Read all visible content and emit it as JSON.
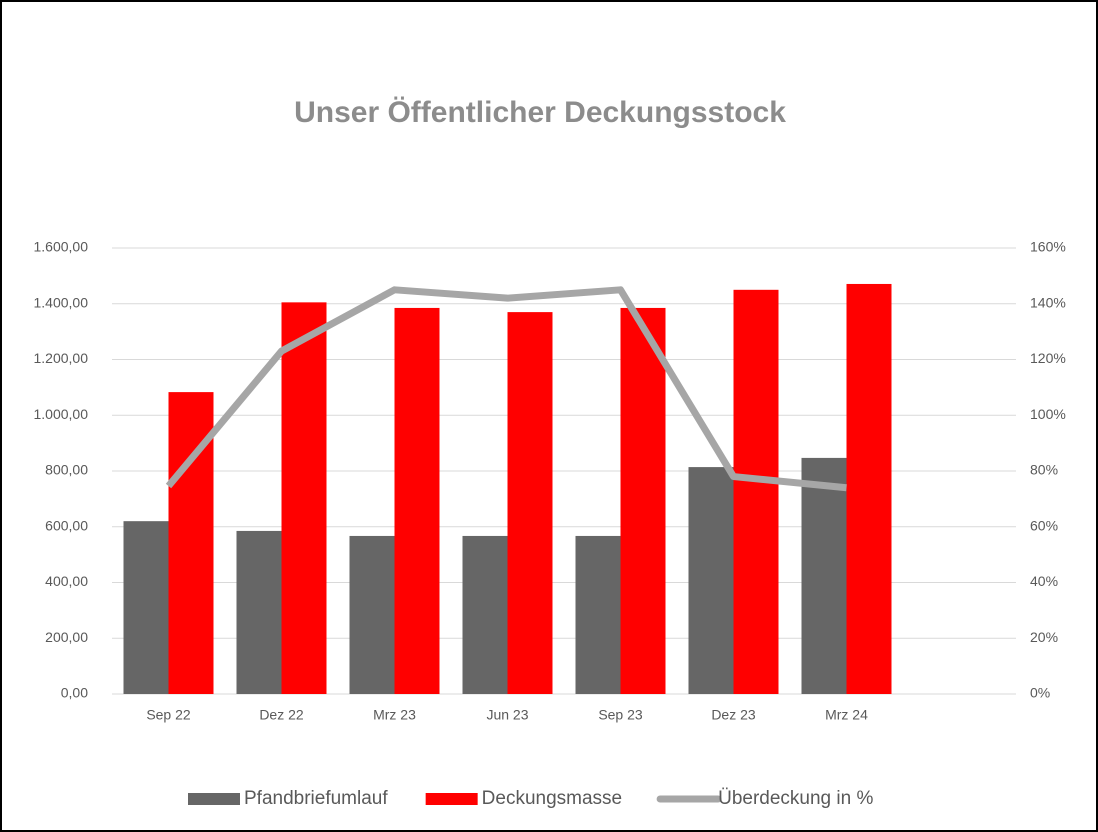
{
  "chart_data": {
    "type": "bar",
    "title": "Unser Öffentlicher Deckungsstock",
    "categories": [
      "Sep 22",
      "Dez 22",
      "Mrz 23",
      "Jun 23",
      "Sep 23",
      "Dez 23",
      "Mrz 24",
      null
    ],
    "series": [
      {
        "name": "Pfandbriefumlauf",
        "color": "#666666",
        "type": "bar",
        "values": [
          620,
          585,
          567,
          567,
          567,
          814,
          847,
          null
        ]
      },
      {
        "name": "Deckungsmasse",
        "color": "#ff0000",
        "type": "bar",
        "values": [
          1083,
          1405,
          1385,
          1370,
          1385,
          1450,
          1471,
          null
        ]
      },
      {
        "name": "Überdeckung in %",
        "color": "#a6a6a6",
        "type": "line",
        "axis": "y2",
        "values": [
          74.6,
          123,
          145,
          142,
          145,
          78,
          74,
          null
        ]
      }
    ],
    "ylim": [
      0,
      1600
    ],
    "yticks": [
      {
        "value": 0,
        "label": "0,00"
      },
      {
        "value": 200,
        "label": "200,00"
      },
      {
        "value": 400,
        "label": "400,00"
      },
      {
        "value": 600,
        "label": "600,00"
      },
      {
        "value": 800,
        "label": "800,00"
      },
      {
        "value": 1000,
        "label": "1.000,00"
      },
      {
        "value": 1200,
        "label": "1.200,00"
      },
      {
        "value": 1400,
        "label": "1.400,00"
      },
      {
        "value": 1600,
        "label": "1.600,00"
      }
    ],
    "y2lim": [
      0,
      160
    ],
    "y2ticks": [
      {
        "value": 0,
        "label": "0%"
      },
      {
        "value": 20,
        "label": "20%"
      },
      {
        "value": 40,
        "label": "40%"
      },
      {
        "value": 60,
        "label": "60%"
      },
      {
        "value": 80,
        "label": "80%"
      },
      {
        "value": 100,
        "label": "100%"
      },
      {
        "value": 120,
        "label": "120%"
      },
      {
        "value": 140,
        "label": "140%"
      },
      {
        "value": 160,
        "label": "160%"
      }
    ],
    "grid": true,
    "legend": "bottom"
  }
}
